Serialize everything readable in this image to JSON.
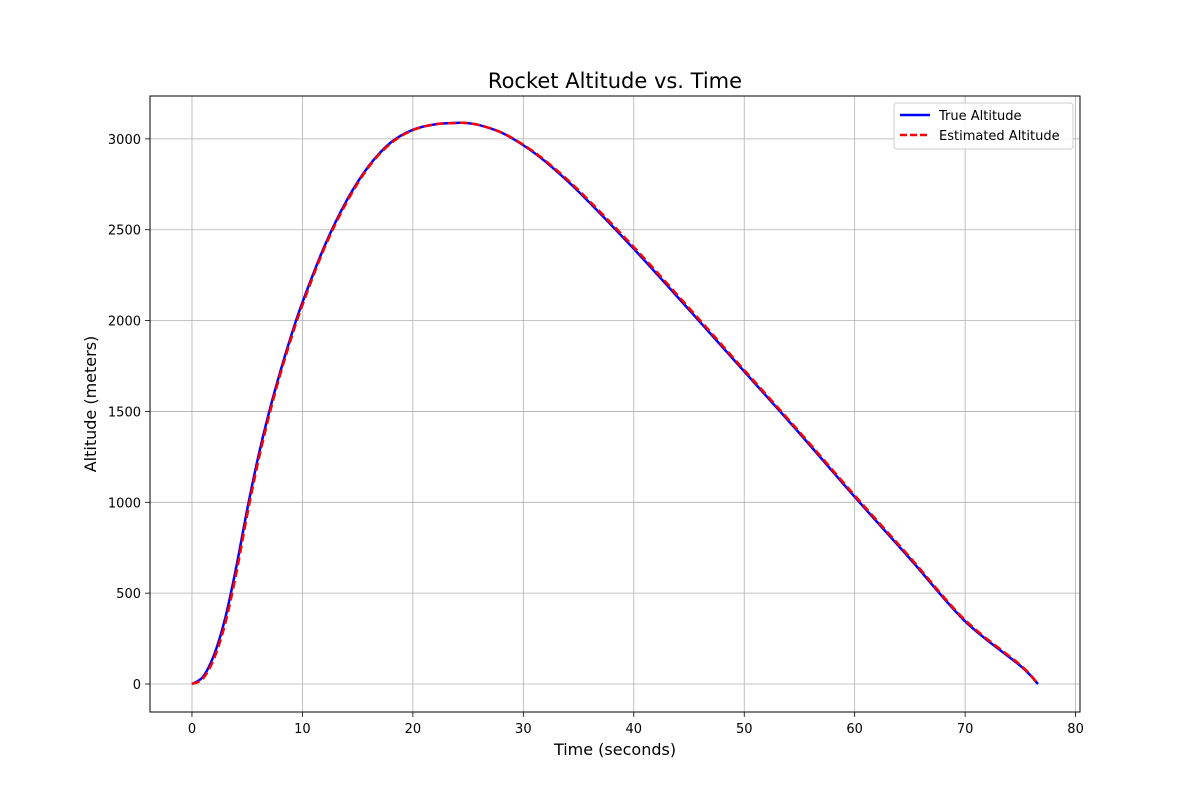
{
  "chart_data": {
    "type": "line",
    "title": "Rocket Altitude vs. Time",
    "xlabel": "Time (seconds)",
    "ylabel": "Altitude (meters)",
    "xlim": [
      -3.8,
      80.4
    ],
    "ylim": [
      -154,
      3236
    ],
    "xticks": [
      0,
      10,
      20,
      30,
      40,
      50,
      60,
      70,
      80
    ],
    "yticks": [
      0,
      500,
      1000,
      1500,
      2000,
      2500,
      3000
    ],
    "grid": true,
    "legend_position": "top-right",
    "series": [
      {
        "name": "True Altitude",
        "color": "#0000ff",
        "style": "solid",
        "x": [
          0,
          1,
          2,
          3,
          4,
          5,
          6,
          7,
          8,
          9,
          10,
          12,
          14,
          16,
          18,
          20,
          22,
          24,
          24.7,
          26,
          28,
          30,
          32,
          35,
          40,
          45,
          50,
          55,
          60,
          65,
          70,
          75,
          76.6
        ],
        "y": [
          0,
          40,
          160,
          360,
          640,
          960,
          1250,
          1500,
          1720,
          1920,
          2100,
          2410,
          2660,
          2850,
          2980,
          3050,
          3080,
          3088,
          3088,
          3076,
          3035,
          2965,
          2875,
          2710,
          2395,
          2060,
          1720,
          1380,
          1030,
          690,
          345,
          100,
          0
        ]
      },
      {
        "name": "Estimated Altitude",
        "color": "#ff0000",
        "style": "dashed",
        "x": [
          0,
          1,
          2,
          3,
          4,
          5,
          6,
          7,
          8,
          9,
          10,
          12,
          14,
          16,
          18,
          20,
          22,
          24,
          24.7,
          26,
          28,
          30,
          32,
          35,
          40,
          45,
          50,
          55,
          60,
          65,
          70,
          75,
          76.6
        ],
        "y": [
          0,
          30,
          140,
          330,
          605,
          930,
          1225,
          1480,
          1705,
          1905,
          2085,
          2400,
          2650,
          2845,
          2975,
          3048,
          3080,
          3088,
          3088,
          3076,
          3036,
          2968,
          2880,
          2718,
          2405,
          2070,
          1728,
          1388,
          1038,
          698,
          352,
          105,
          0
        ]
      }
    ]
  }
}
